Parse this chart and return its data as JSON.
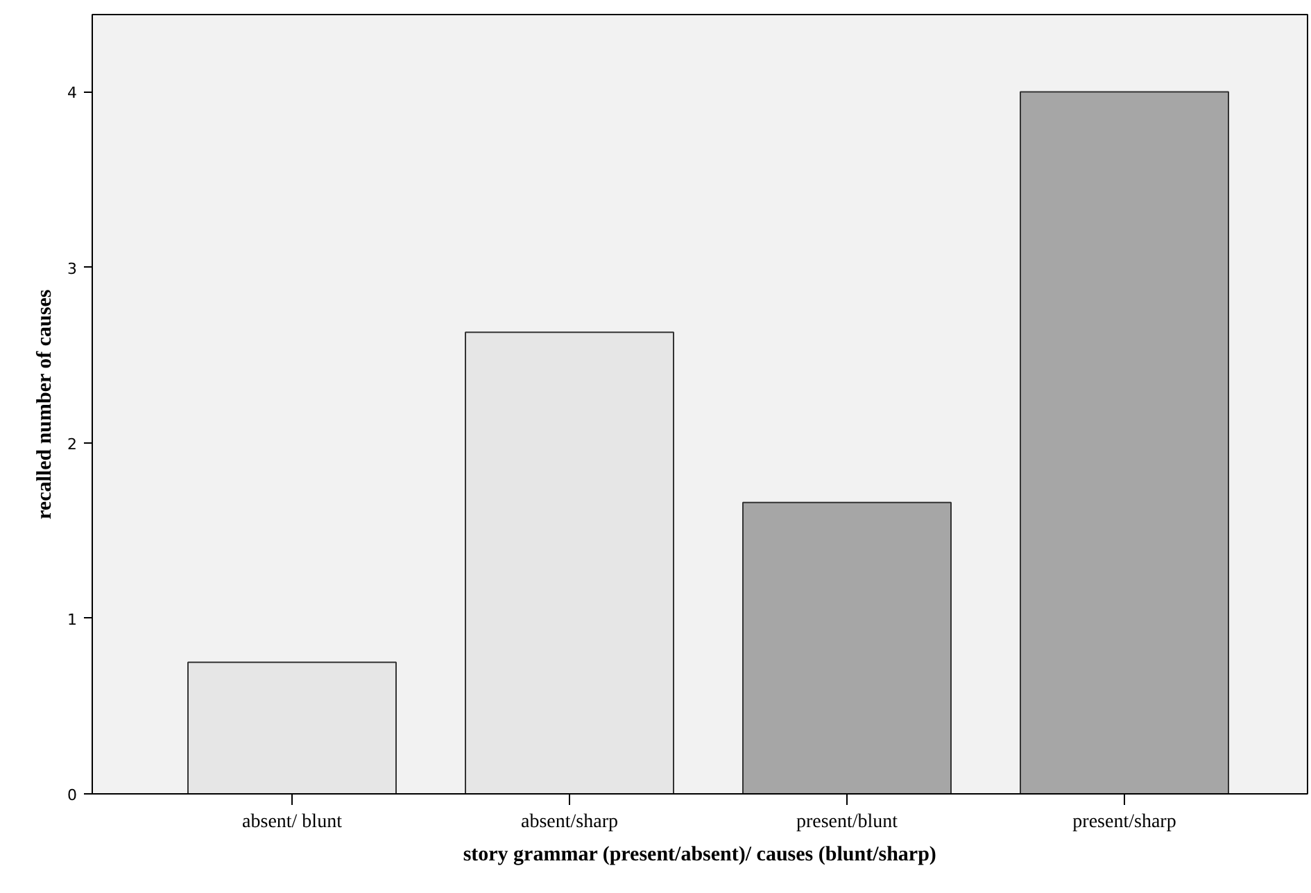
{
  "chart_data": {
    "type": "bar",
    "xlabel": "story grammar (present/absent)/ causes (blunt/sharp)",
    "ylabel": "recalled number of causes",
    "categories": [
      "absent/ blunt",
      "absent/sharp",
      "present/blunt",
      "present/sharp"
    ],
    "values": [
      0.75,
      2.63,
      1.66,
      4.0
    ],
    "colors": [
      "#e6e6e6",
      "#e6e6e6",
      "#a6a6a6",
      "#a6a6a6"
    ],
    "ylim": [
      0,
      4.44
    ],
    "yticks": [
      0,
      1,
      2,
      3,
      4
    ],
    "grid": false
  }
}
